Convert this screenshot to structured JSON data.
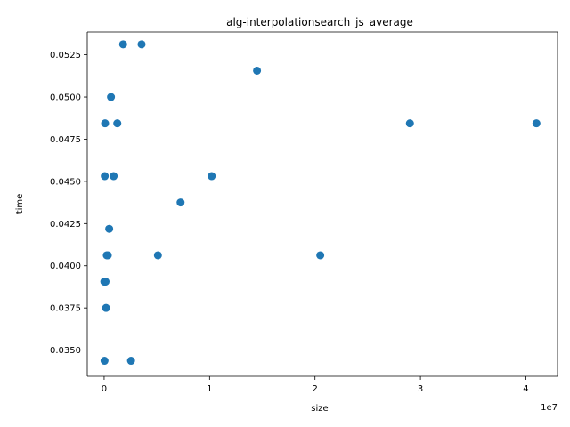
{
  "chart_data": {
    "type": "scatter",
    "title": "alg-interpolationsearch_js_average",
    "xlabel": "size",
    "ylabel": "time",
    "x_offset_label": "1e7",
    "xlim": [
      -1600000,
      43000000
    ],
    "ylim": [
      0.03345,
      0.05385
    ],
    "x_ticks": [
      0,
      10000000,
      20000000,
      30000000,
      40000000
    ],
    "x_tick_labels": [
      "0",
      "1",
      "2",
      "3",
      "4"
    ],
    "y_ticks": [
      0.035,
      0.0375,
      0.04,
      0.0425,
      0.045,
      0.0475,
      0.05,
      0.0525
    ],
    "y_tick_labels": [
      "0.0350",
      "0.0375",
      "0.0400",
      "0.0425",
      "0.0450",
      "0.0475",
      "0.0500",
      "0.0525"
    ],
    "grid": false,
    "marker_color": "#1f77b4",
    "points": [
      {
        "x": 18000,
        "y": 0.03906
      },
      {
        "x": 36000,
        "y": 0.03437
      },
      {
        "x": 60000,
        "y": 0.04531
      },
      {
        "x": 90000,
        "y": 0.04844
      },
      {
        "x": 130000,
        "y": 0.03906
      },
      {
        "x": 180000,
        "y": 0.0375
      },
      {
        "x": 250000,
        "y": 0.04062
      },
      {
        "x": 350000,
        "y": 0.04062
      },
      {
        "x": 480000,
        "y": 0.04219
      },
      {
        "x": 650000,
        "y": 0.05
      },
      {
        "x": 900000,
        "y": 0.04531
      },
      {
        "x": 1250000,
        "y": 0.04844
      },
      {
        "x": 1800000,
        "y": 0.05312
      },
      {
        "x": 2550000,
        "y": 0.03437
      },
      {
        "x": 3550000,
        "y": 0.05312
      },
      {
        "x": 5100000,
        "y": 0.04062
      },
      {
        "x": 7250000,
        "y": 0.04375
      },
      {
        "x": 10200000,
        "y": 0.04531
      },
      {
        "x": 14500000,
        "y": 0.05156
      },
      {
        "x": 20500000,
        "y": 0.04062
      },
      {
        "x": 29000000,
        "y": 0.04844
      },
      {
        "x": 41000000,
        "y": 0.04844
      }
    ]
  }
}
